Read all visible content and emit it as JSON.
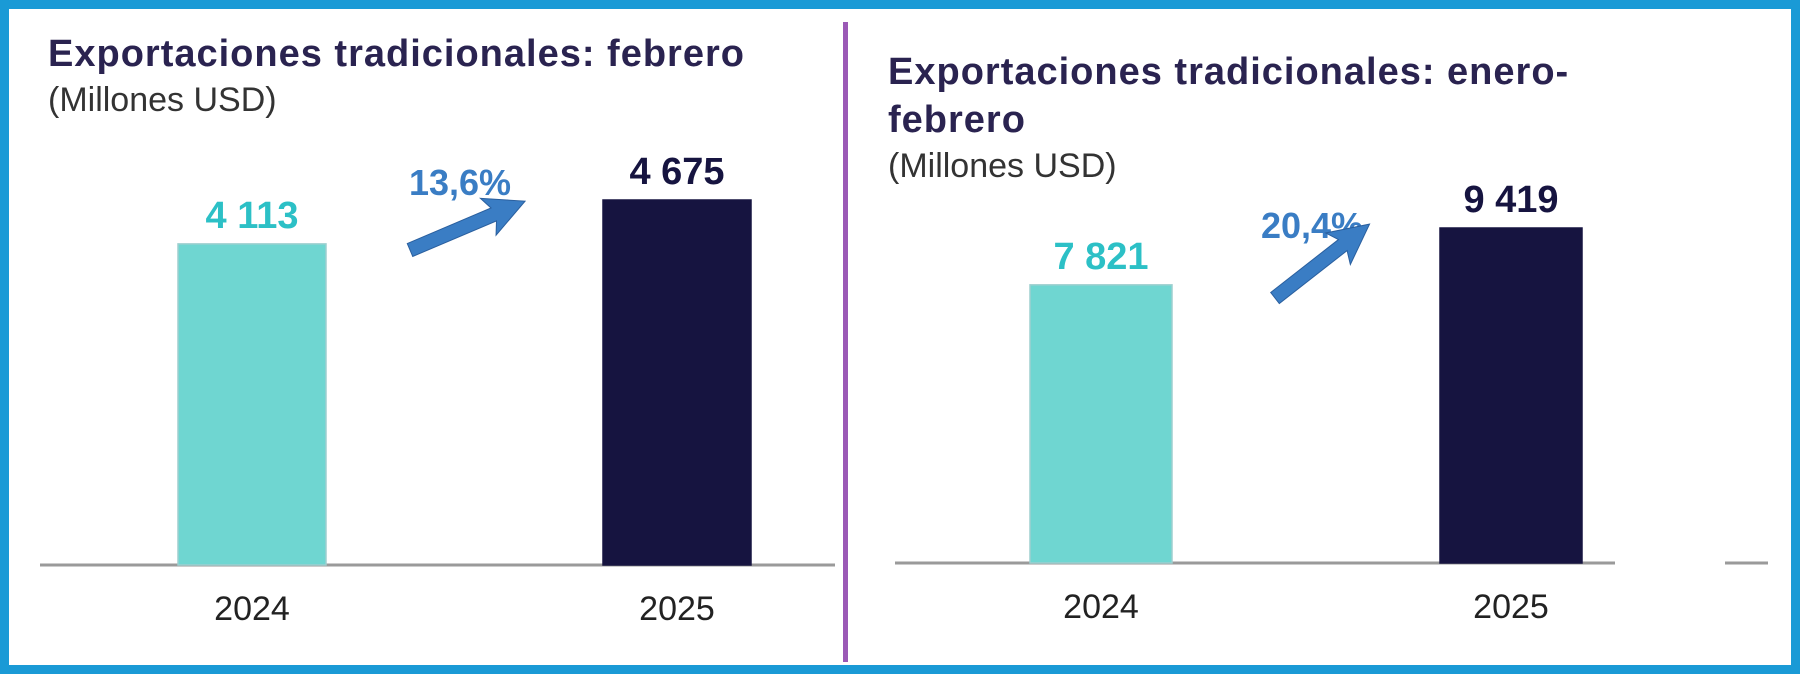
{
  "colors": {
    "frame": "#1a9ad6",
    "divider": "#9b59b6",
    "bar_2024": "#6fd6d1",
    "bar_2025": "#161440",
    "label_2024": "#2cc0c6",
    "label_2025": "#161440",
    "growth": "#3a7dc4",
    "arrow": "#3a7dc4",
    "axis": "#9a9a9a",
    "title": "#2a2350"
  },
  "chart_data": [
    {
      "type": "bar",
      "title": "Exportaciones tradicionales: febrero",
      "subtitle": "(Millones USD)",
      "categories": [
        "2024",
        "2025"
      ],
      "values": [
        4113,
        4675
      ],
      "value_labels": [
        "4 113",
        "4 675"
      ],
      "growth_label": "13,6%",
      "ylim": [
        0,
        4675
      ]
    },
    {
      "type": "bar",
      "title": "Exportaciones tradicionales: enero-febrero",
      "subtitle": "(Millones USD)",
      "categories": [
        "2024",
        "2025"
      ],
      "values": [
        7821,
        9419
      ],
      "value_labels": [
        "7 821",
        "9 419"
      ],
      "growth_label": "20,4%",
      "ylim": [
        0,
        9419
      ]
    }
  ]
}
